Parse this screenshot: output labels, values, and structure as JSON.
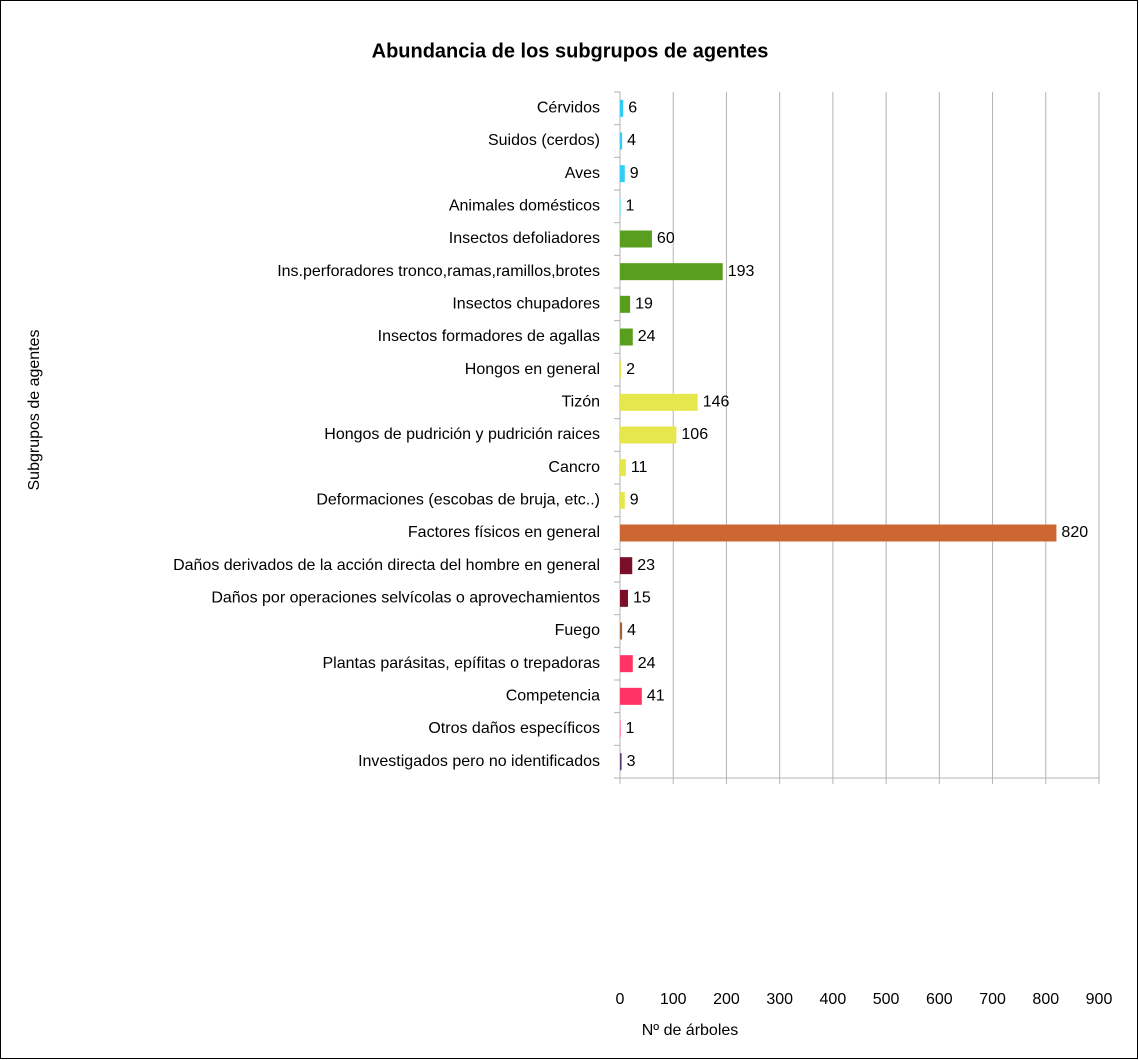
{
  "chart_data": {
    "type": "barh",
    "title": "Abundancia de los subgrupos de agentes",
    "xlabel": "Nº de árboles",
    "ylabel": "Subgrupos de agentes",
    "categories": [
      "Cérvidos",
      "Suidos (cerdos)",
      "Aves",
      "Animales domésticos",
      "Insectos defoliadores",
      "Ins.perforadores tronco,ramas,ramillos,brotes",
      "Insectos chupadores",
      "Insectos formadores de agallas",
      "Hongos en general",
      "Tizón",
      "Hongos de pudrición y pudrición raices",
      "Cancro",
      "Deformaciones (escobas de bruja, etc..)",
      "Factores físicos en general",
      "Daños derivados de la acción directa del hombre en general",
      "Daños por operaciones selvícolas o aprovechamientos",
      "Fuego",
      "Plantas parásitas, epífitas o trepadoras",
      "Competencia",
      "Otros daños específicos",
      "Investigados pero no identificados"
    ],
    "values": [
      6,
      4,
      9,
      1,
      60,
      193,
      19,
      24,
      2,
      146,
      106,
      11,
      9,
      820,
      23,
      15,
      4,
      24,
      41,
      1,
      3
    ],
    "colors": [
      "#33ccf5",
      "#33ccf5",
      "#33ccf5",
      "#33ccf5",
      "#5a9e1e",
      "#5a9e1e",
      "#5a9e1e",
      "#5a9e1e",
      "#e6e64d",
      "#e6e64d",
      "#e6e64d",
      "#e6e64d",
      "#e6e64d",
      "#cc6633",
      "#7a0f2a",
      "#7a0f2a",
      "#a0633a",
      "#ff3366",
      "#ff3366",
      "#ff3366",
      "#5c3a7a"
    ],
    "xlim": [
      0,
      900
    ],
    "xticks": [
      0,
      100,
      200,
      300,
      400,
      500,
      600,
      700,
      800,
      900
    ],
    "grid": true
  }
}
